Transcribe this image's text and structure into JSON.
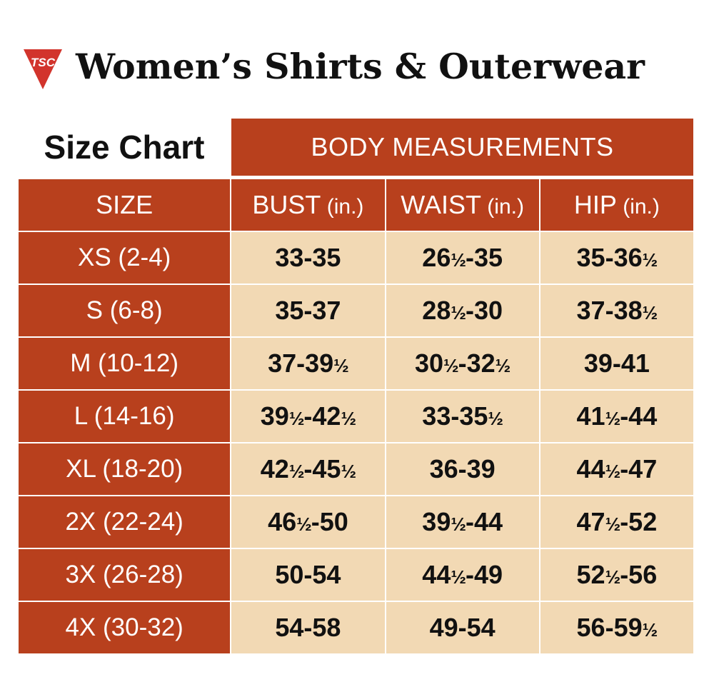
{
  "header": {
    "logo_text": "TSC",
    "title": "Women’s Shirts & Outerwear"
  },
  "colors": {
    "accent": "#b8401d",
    "cell_fill": "#f2d9b4",
    "text": "#111111"
  },
  "chart": {
    "label": "Size Chart",
    "band": "BODY MEASUREMENTS",
    "columns": [
      {
        "label": "SIZE",
        "unit": ""
      },
      {
        "label": "BUST",
        "unit": " (in.)"
      },
      {
        "label": "WAIST",
        "unit": " (in.)"
      },
      {
        "label": "HIP",
        "unit": " (in.)"
      }
    ],
    "rows": [
      {
        "size": "XS (2-4)",
        "bust": "33-35",
        "waist": "26½-35",
        "hip": "35-36½"
      },
      {
        "size": "S (6-8)",
        "bust": "35-37",
        "waist": "28½-30",
        "hip": "37-38½"
      },
      {
        "size": "M (10-12)",
        "bust": "37-39½",
        "waist": "30½-32½",
        "hip": "39-41"
      },
      {
        "size": "L (14-16)",
        "bust": "39½-42½",
        "waist": "33-35½",
        "hip": "41½-44"
      },
      {
        "size": "XL (18-20)",
        "bust": "42½-45½",
        "waist": "36-39",
        "hip": "44½-47"
      },
      {
        "size": "2X (22-24)",
        "bust": "46½-50",
        "waist": "39½-44",
        "hip": "47½-52"
      },
      {
        "size": "3X (26-28)",
        "bust": "50-54",
        "waist": "44½-49",
        "hip": "52½-56"
      },
      {
        "size": "4X (30-32)",
        "bust": "54-58",
        "waist": "49-54",
        "hip": "56-59½"
      }
    ]
  }
}
